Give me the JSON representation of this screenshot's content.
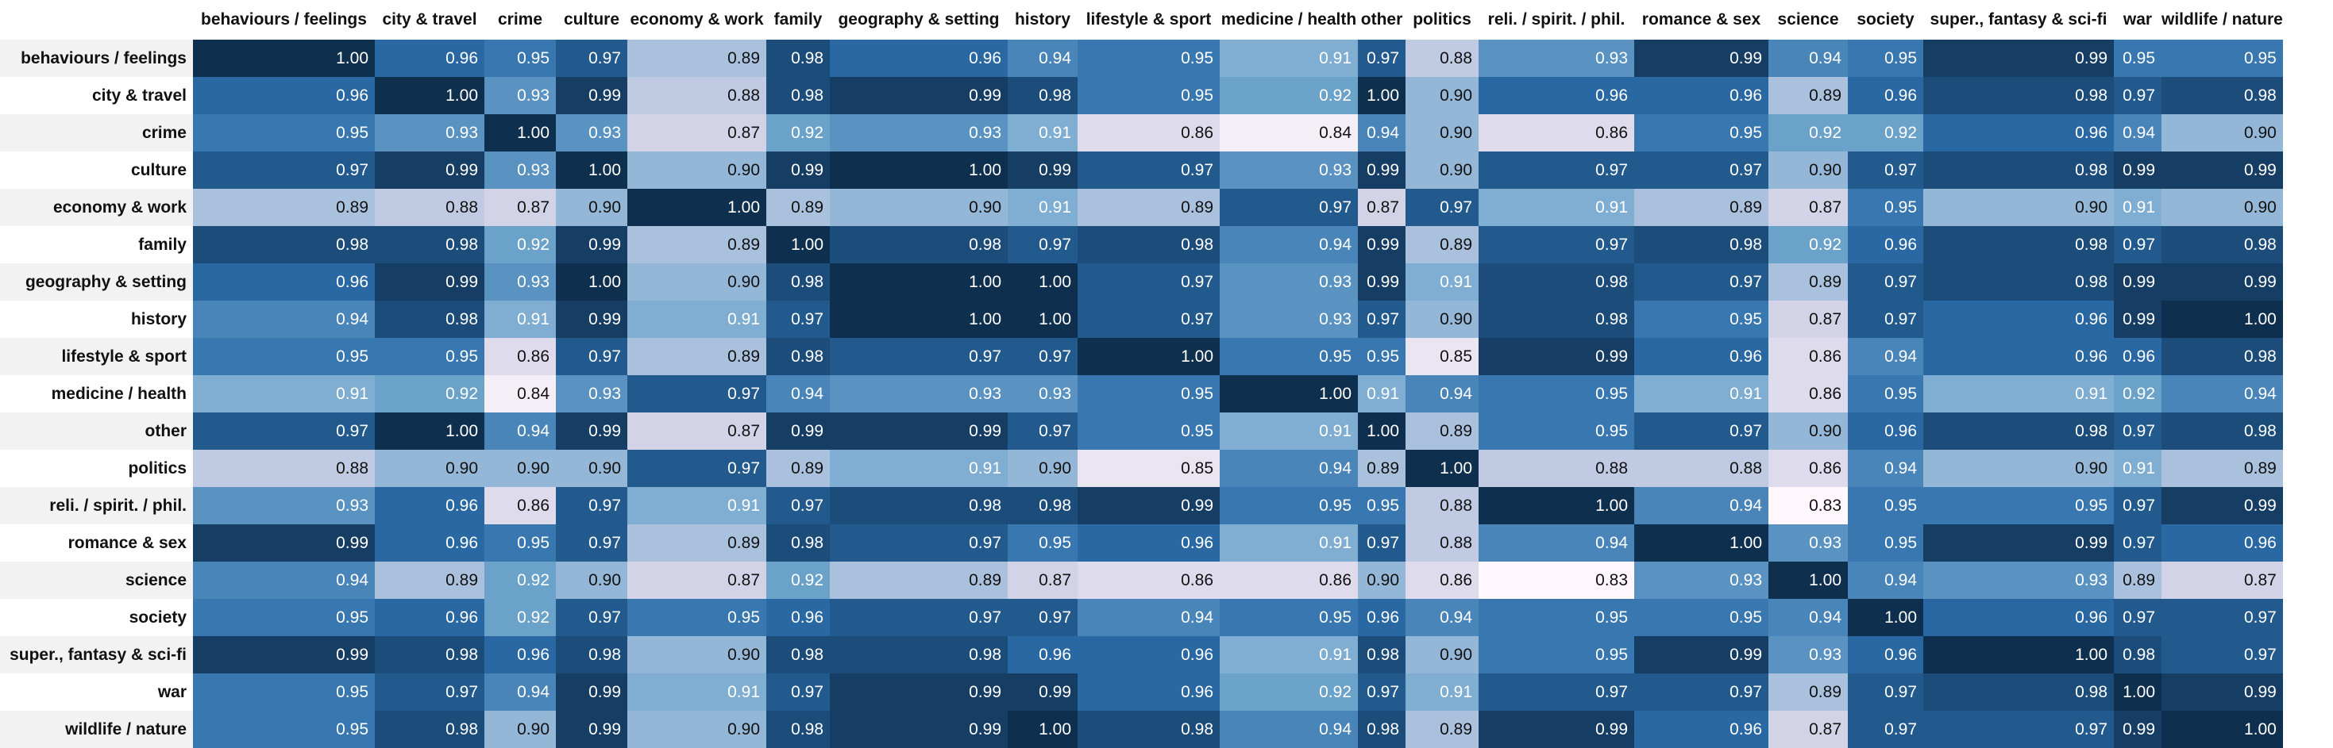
{
  "chart_data": {
    "type": "heatmap",
    "x": [
      "behaviours / feelings",
      "city & travel",
      "crime",
      "culture",
      "economy & work",
      "family",
      "geography & setting",
      "history",
      "lifestyle & sport",
      "medicine / health",
      "other",
      "politics",
      "reli. / spirit. / phil.",
      "romance & sex",
      "science",
      "society",
      "super., fantasy & sci-fi",
      "war",
      "wildlife / nature"
    ],
    "y": [
      "behaviours / feelings",
      "city & travel",
      "crime",
      "culture",
      "economy & work",
      "family",
      "geography & setting",
      "history",
      "lifestyle & sport",
      "medicine / health",
      "other",
      "politics",
      "reli. / spirit. / phil.",
      "romance & sex",
      "science",
      "society",
      "super., fantasy & sci-fi",
      "war",
      "wildlife / nature"
    ],
    "values": [
      [
        1.0,
        0.96,
        0.95,
        0.97,
        0.89,
        0.98,
        0.96,
        0.94,
        0.95,
        0.91,
        0.97,
        0.88,
        0.93,
        0.99,
        0.94,
        0.95,
        0.99,
        0.95,
        0.95
      ],
      [
        0.96,
        1.0,
        0.93,
        0.99,
        0.88,
        0.98,
        0.99,
        0.98,
        0.95,
        0.92,
        1.0,
        0.9,
        0.96,
        0.96,
        0.89,
        0.96,
        0.98,
        0.97,
        0.98
      ],
      [
        0.95,
        0.93,
        1.0,
        0.93,
        0.87,
        0.92,
        0.93,
        0.91,
        0.86,
        0.84,
        0.94,
        0.9,
        0.86,
        0.95,
        0.92,
        0.92,
        0.96,
        0.94,
        0.9
      ],
      [
        0.97,
        0.99,
        0.93,
        1.0,
        0.9,
        0.99,
        1.0,
        0.99,
        0.97,
        0.93,
        0.99,
        0.9,
        0.97,
        0.97,
        0.9,
        0.97,
        0.98,
        0.99,
        0.99
      ],
      [
        0.89,
        0.88,
        0.87,
        0.9,
        1.0,
        0.89,
        0.9,
        0.91,
        0.89,
        0.97,
        0.87,
        0.97,
        0.91,
        0.89,
        0.87,
        0.95,
        0.9,
        0.91,
        0.9
      ],
      [
        0.98,
        0.98,
        0.92,
        0.99,
        0.89,
        1.0,
        0.98,
        0.97,
        0.98,
        0.94,
        0.99,
        0.89,
        0.97,
        0.98,
        0.92,
        0.96,
        0.98,
        0.97,
        0.98
      ],
      [
        0.96,
        0.99,
        0.93,
        1.0,
        0.9,
        0.98,
        1.0,
        1.0,
        0.97,
        0.93,
        0.99,
        0.91,
        0.98,
        0.97,
        0.89,
        0.97,
        0.98,
        0.99,
        0.99
      ],
      [
        0.94,
        0.98,
        0.91,
        0.99,
        0.91,
        0.97,
        1.0,
        1.0,
        0.97,
        0.93,
        0.97,
        0.9,
        0.98,
        0.95,
        0.87,
        0.97,
        0.96,
        0.99,
        1.0
      ],
      [
        0.95,
        0.95,
        0.86,
        0.97,
        0.89,
        0.98,
        0.97,
        0.97,
        1.0,
        0.95,
        0.95,
        0.85,
        0.99,
        0.96,
        0.86,
        0.94,
        0.96,
        0.96,
        0.98
      ],
      [
        0.91,
        0.92,
        0.84,
        0.93,
        0.97,
        0.94,
        0.93,
        0.93,
        0.95,
        1.0,
        0.91,
        0.94,
        0.95,
        0.91,
        0.86,
        0.95,
        0.91,
        0.92,
        0.94
      ],
      [
        0.97,
        1.0,
        0.94,
        0.99,
        0.87,
        0.99,
        0.99,
        0.97,
        0.95,
        0.91,
        1.0,
        0.89,
        0.95,
        0.97,
        0.9,
        0.96,
        0.98,
        0.97,
        0.98
      ],
      [
        0.88,
        0.9,
        0.9,
        0.9,
        0.97,
        0.89,
        0.91,
        0.9,
        0.85,
        0.94,
        0.89,
        1.0,
        0.88,
        0.88,
        0.86,
        0.94,
        0.9,
        0.91,
        0.89
      ],
      [
        0.93,
        0.96,
        0.86,
        0.97,
        0.91,
        0.97,
        0.98,
        0.98,
        0.99,
        0.95,
        0.95,
        0.88,
        1.0,
        0.94,
        0.83,
        0.95,
        0.95,
        0.97,
        0.99
      ],
      [
        0.99,
        0.96,
        0.95,
        0.97,
        0.89,
        0.98,
        0.97,
        0.95,
        0.96,
        0.91,
        0.97,
        0.88,
        0.94,
        1.0,
        0.93,
        0.95,
        0.99,
        0.97,
        0.96
      ],
      [
        0.94,
        0.89,
        0.92,
        0.9,
        0.87,
        0.92,
        0.89,
        0.87,
        0.86,
        0.86,
        0.9,
        0.86,
        0.83,
        0.93,
        1.0,
        0.94,
        0.93,
        0.89,
        0.87
      ],
      [
        0.95,
        0.96,
        0.92,
        0.97,
        0.95,
        0.96,
        0.97,
        0.97,
        0.94,
        0.95,
        0.96,
        0.94,
        0.95,
        0.95,
        0.94,
        1.0,
        0.96,
        0.97,
        0.97
      ],
      [
        0.99,
        0.98,
        0.96,
        0.98,
        0.9,
        0.98,
        0.98,
        0.96,
        0.96,
        0.91,
        0.98,
        0.9,
        0.95,
        0.99,
        0.93,
        0.96,
        1.0,
        0.98,
        0.97
      ],
      [
        0.95,
        0.97,
        0.94,
        0.99,
        0.91,
        0.97,
        0.99,
        0.99,
        0.96,
        0.92,
        0.97,
        0.91,
        0.97,
        0.97,
        0.89,
        0.97,
        0.98,
        1.0,
        0.99
      ],
      [
        0.95,
        0.98,
        0.9,
        0.99,
        0.9,
        0.98,
        0.99,
        1.0,
        0.98,
        0.94,
        0.98,
        0.89,
        0.99,
        0.96,
        0.87,
        0.97,
        0.97,
        0.99,
        1.0
      ]
    ],
    "colormap": [
      "#fff7fb",
      "#d0d1e6",
      "#74a9cf",
      "#2b6ca8",
      "#0f2f4f"
    ],
    "value_range": [
      0.83,
      1.0
    ]
  }
}
